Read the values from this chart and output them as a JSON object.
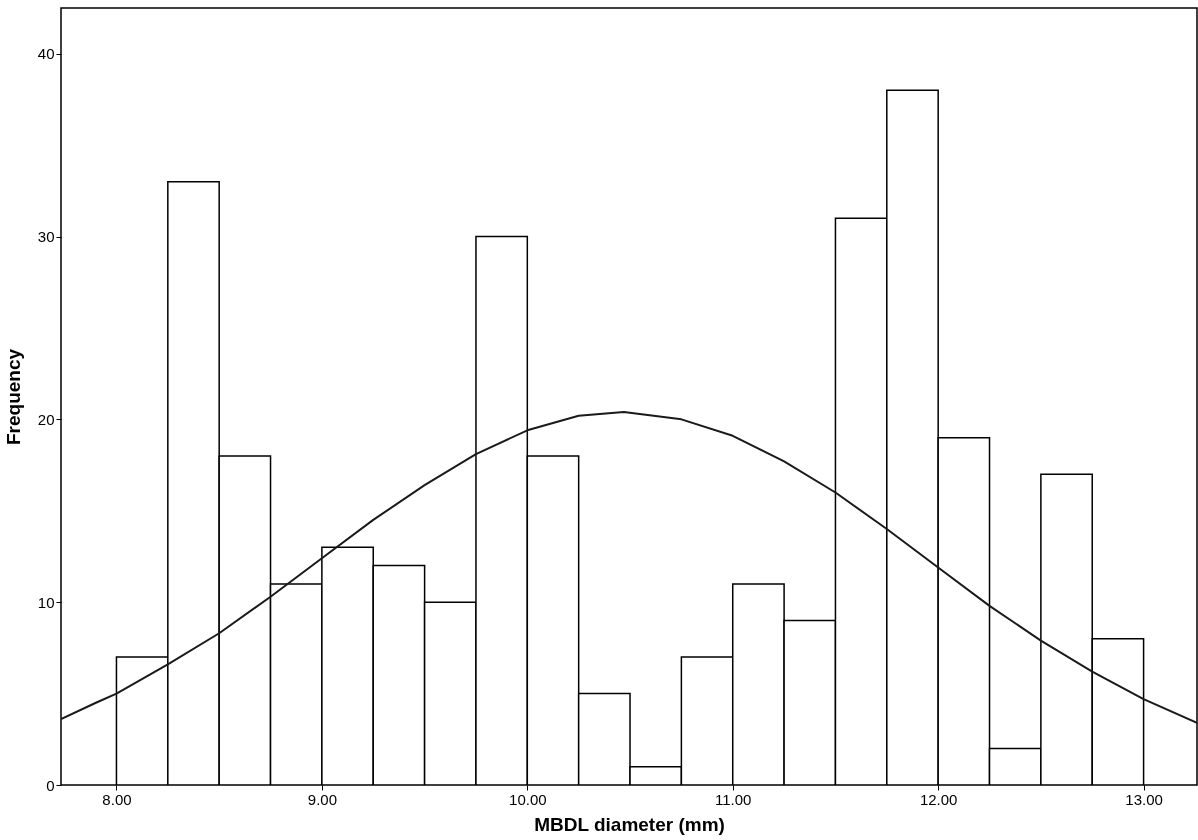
{
  "chart_data": {
    "type": "histogram",
    "xlabel": "MBDL diameter (mm)",
    "ylabel": "Frequency",
    "bins": [
      8,
      8.25,
      8.5,
      8.75,
      9,
      9.25,
      9.5,
      9.75,
      10,
      10.25,
      10.5,
      10.75,
      11,
      11.25,
      11.5,
      11.75,
      12,
      12.25,
      12.5,
      12.75,
      13
    ],
    "values": [
      7,
      33,
      18,
      11,
      13,
      12,
      10,
      30,
      18,
      5,
      1,
      7,
      11,
      9,
      31,
      38,
      19,
      2,
      17,
      8
    ],
    "color": "#ffffff",
    "series": [
      {
        "type": "line",
        "color": "#1a1a1a",
        "x": [
          7.73,
          7.9,
          8,
          8.25,
          8.5,
          8.75,
          9,
          9.25,
          9.5,
          9.75,
          10,
          10.25,
          10.47,
          10.75,
          11,
          11.25,
          11.5,
          11.75,
          12,
          12.25,
          12.5,
          12.75,
          13,
          13.26
        ],
        "values": [
          3.6,
          4.5,
          5,
          6.6,
          8.3,
          10.3,
          12.4,
          14.5,
          16.4,
          18.1,
          19.4,
          20.2,
          20.4,
          20,
          19.1,
          17.7,
          16,
          14,
          11.9,
          9.8,
          7.9,
          6.2,
          4.7,
          3.4
        ]
      }
    ],
    "xlim": [
      7.73,
      13.26
    ],
    "ylim": [
      0,
      42.5
    ],
    "xticks": [
      {
        "value": 8,
        "label": "8.00"
      },
      {
        "value": 9,
        "label": "9.00"
      },
      {
        "value": 10,
        "label": "10.00"
      },
      {
        "value": 11,
        "label": "11.00"
      },
      {
        "value": 12,
        "label": "12.00"
      },
      {
        "value": 13,
        "label": "13.00"
      }
    ],
    "yticks": [
      0,
      10,
      20,
      30,
      40
    ]
  }
}
